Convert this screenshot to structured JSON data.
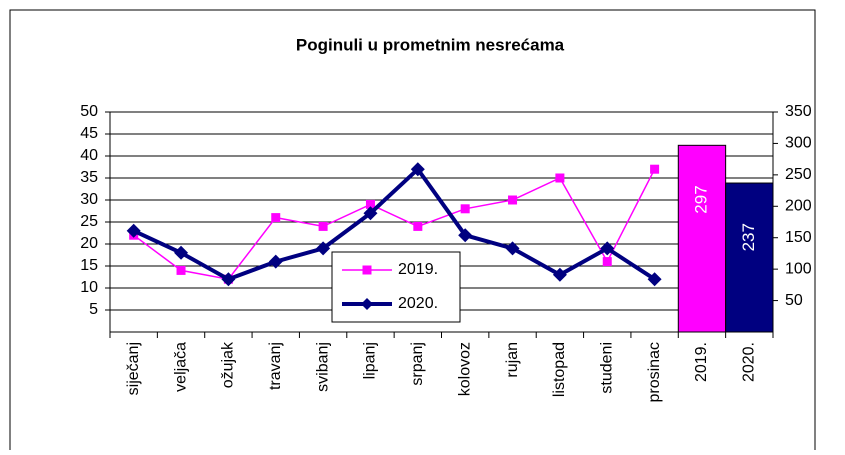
{
  "chart_data": {
    "type": "line",
    "title": "Poginuli u prometnim nesrećama",
    "categories": [
      "siječanj",
      "veljača",
      "ožujak",
      "travanj",
      "svibanj",
      "lipanj",
      "srpanj",
      "kolovoz",
      "rujan",
      "listopad",
      "studeni",
      "prosinac",
      "2019.",
      "2020."
    ],
    "series": [
      {
        "name": "2019.",
        "type": "line",
        "color": "#ff00ff",
        "values": [
          22,
          14,
          12,
          26,
          24,
          29,
          24,
          28,
          30,
          35,
          16,
          37,
          null,
          null
        ]
      },
      {
        "name": "2020.",
        "type": "line",
        "color": "#000080",
        "values": [
          23,
          18,
          12,
          16,
          19,
          27,
          37,
          22,
          19,
          13,
          19,
          12,
          null,
          null
        ]
      },
      {
        "type": "bar",
        "axis": "y2",
        "color": "#ff00ff",
        "values": [
          null,
          null,
          null,
          null,
          null,
          null,
          null,
          null,
          null,
          null,
          null,
          null,
          297,
          null
        ]
      },
      {
        "type": "bar",
        "axis": "y2",
        "color": "#000080",
        "values": [
          null,
          null,
          null,
          null,
          null,
          null,
          null,
          null,
          null,
          null,
          null,
          null,
          null,
          237
        ]
      }
    ],
    "ylim": [
      0,
      50
    ],
    "yticks": [
      5,
      10,
      15,
      20,
      25,
      30,
      35,
      40,
      45,
      50
    ],
    "y2lim": [
      0,
      350
    ],
    "y2ticks": [
      50,
      100,
      150,
      200,
      250,
      300,
      350
    ],
    "grid": true
  }
}
